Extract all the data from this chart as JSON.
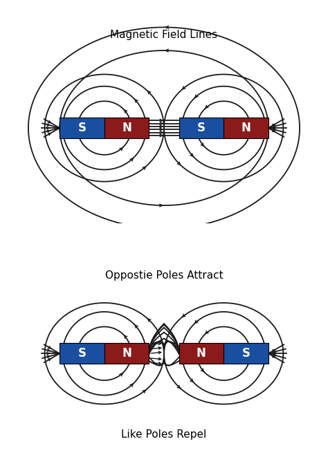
{
  "title1": "Magnetic Field Lines",
  "title2": "Oppostie Poles Attract",
  "title3": "Like Poles Repel",
  "bg_color": "#ffffff",
  "magnet1_colors": [
    "#1a4fa0",
    "#8b1a1a",
    "#8b1a1a",
    "#1a4fa0"
  ],
  "magnet2_colors": [
    "#1a4fa0",
    "#8b1a1a",
    "#8b1a1a",
    "#1a4fa0"
  ],
  "magnet1_labels": [
    "S",
    "N",
    "S",
    "N"
  ],
  "magnet2_labels": [
    "S",
    "N",
    "N",
    "S"
  ],
  "line_color": "#1a1a1a",
  "label_color": "#ffffff",
  "font_size_title": 11,
  "font_size_label": 12
}
